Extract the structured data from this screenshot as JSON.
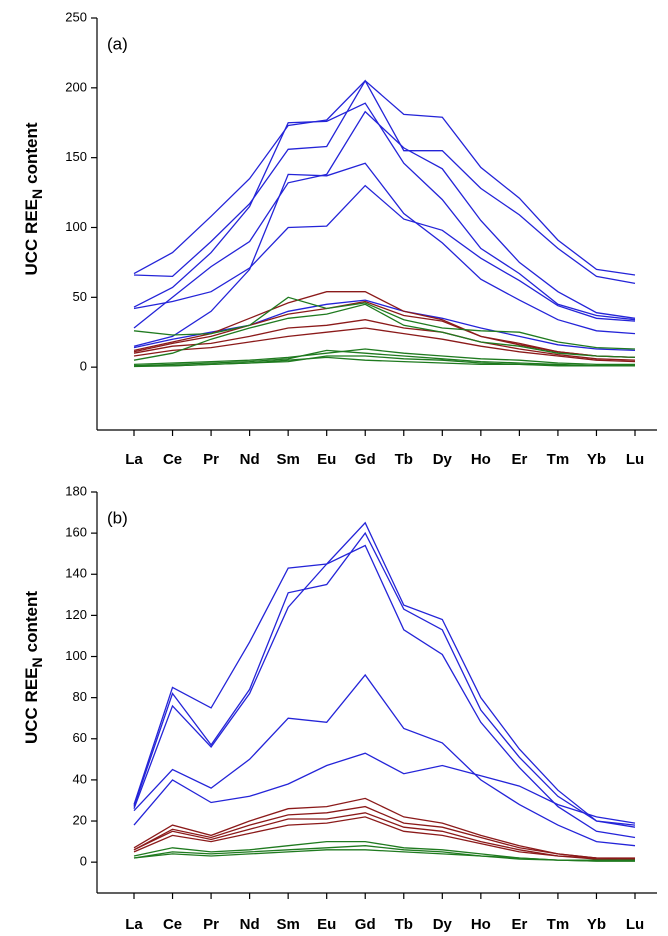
{
  "chart_data": [
    {
      "type": "line",
      "annotation": "(a)",
      "ylabel": "UCC REE",
      "ylabel_subscript": "N",
      "ylabel_suffix": "content",
      "categories": [
        "La",
        "Ce",
        "Pr",
        "Nd",
        "Sm",
        "Eu",
        "Gd",
        "Tb",
        "Dy",
        "Ho",
        "Er",
        "Tm",
        "Yb",
        "Lu"
      ],
      "ylim": [
        -45,
        250
      ],
      "yticks": [
        0,
        50,
        100,
        150,
        200,
        250
      ],
      "series": [
        {
          "color": "#2424d8",
          "values": [
            67,
            82,
            108,
            135,
            173,
            177,
            205,
            181,
            179,
            143,
            121,
            91,
            70,
            66
          ]
        },
        {
          "color": "#2424d8",
          "values": [
            66,
            65,
            90,
            117,
            156,
            158,
            205,
            155,
            155,
            128,
            109,
            85,
            65,
            60
          ]
        },
        {
          "color": "#2424d8",
          "values": [
            43,
            57,
            82,
            115,
            175,
            176,
            189,
            146,
            120,
            85,
            67,
            45,
            37,
            34
          ]
        },
        {
          "color": "#2424d8",
          "values": [
            42,
            47,
            54,
            71,
            100,
            101,
            130,
            106,
            98,
            78,
            62,
            44,
            35,
            33
          ]
        },
        {
          "color": "#2424d8",
          "values": [
            28,
            50,
            72,
            90,
            132,
            138,
            183,
            157,
            142,
            105,
            75,
            54,
            39,
            35
          ]
        },
        {
          "color": "#2424d8",
          "values": [
            15,
            22,
            40,
            70,
            138,
            137,
            146,
            110,
            89,
            63,
            48,
            34,
            26,
            24
          ]
        },
        {
          "color": "#2424d8",
          "values": [
            14,
            20,
            25,
            30,
            40,
            45,
            48,
            40,
            35,
            28,
            22,
            16,
            13,
            12
          ]
        },
        {
          "color": "#8b1a1a",
          "values": [
            12,
            18,
            24,
            35,
            46,
            54,
            54,
            40,
            34,
            22,
            17,
            11,
            8,
            7
          ]
        },
        {
          "color": "#8b1a1a",
          "values": [
            11,
            17,
            22,
            30,
            38,
            42,
            47,
            37,
            33,
            22,
            16,
            11,
            8,
            7
          ]
        },
        {
          "color": "#8b1a1a",
          "values": [
            10,
            15,
            17,
            22,
            28,
            30,
            34,
            28,
            25,
            18,
            13,
            9,
            6,
            5
          ]
        },
        {
          "color": "#8b1a1a",
          "values": [
            8,
            12,
            14,
            18,
            22,
            25,
            28,
            24,
            20,
            15,
            11,
            8,
            5,
            4
          ]
        },
        {
          "color": "#1f7a1f",
          "values": [
            26,
            23,
            24,
            30,
            50,
            42,
            46,
            34,
            28,
            26,
            25,
            18,
            14,
            13
          ]
        },
        {
          "color": "#1f7a1f",
          "values": [
            5,
            10,
            20,
            28,
            35,
            38,
            45,
            30,
            25,
            18,
            15,
            10,
            8,
            7
          ]
        },
        {
          "color": "#1f7a1f",
          "values": [
            2,
            3,
            4,
            5,
            7,
            10,
            13,
            10,
            8,
            6,
            5,
            3,
            2,
            2
          ]
        },
        {
          "color": "#1f7a1f",
          "values": [
            1,
            2,
            3,
            4,
            6,
            12,
            10,
            8,
            6,
            4,
            3,
            2,
            1,
            1
          ]
        },
        {
          "color": "#1f7a1f",
          "values": [
            0.5,
            1,
            2,
            3,
            4,
            8,
            8,
            6,
            5,
            3,
            2,
            1.5,
            1,
            1
          ]
        },
        {
          "color": "#1f7a1f",
          "values": [
            1,
            1,
            2,
            3,
            5,
            7,
            5,
            4,
            3,
            2,
            2,
            1,
            1,
            1
          ]
        }
      ]
    },
    {
      "type": "line",
      "annotation": "(b)",
      "ylabel": "UCC REE",
      "ylabel_subscript": "N",
      "ylabel_suffix": "content",
      "categories": [
        "La",
        "Ce",
        "Pr",
        "Nd",
        "Sm",
        "Eu",
        "Gd",
        "Tb",
        "Dy",
        "Ho",
        "Er",
        "Tm",
        "Yb",
        "Lu"
      ],
      "ylim": [
        -15,
        180
      ],
      "yticks": [
        0,
        20,
        40,
        60,
        80,
        100,
        120,
        140,
        160,
        180
      ],
      "series": [
        {
          "color": "#2424d8",
          "values": [
            28,
            85,
            75,
            107,
            143,
            145,
            165,
            125,
            118,
            80,
            55,
            35,
            20,
            18
          ]
        },
        {
          "color": "#2424d8",
          "values": [
            27,
            82,
            57,
            84,
            131,
            135,
            160,
            123,
            113,
            74,
            51,
            32,
            20,
            17
          ]
        },
        {
          "color": "#2424d8",
          "values": [
            26,
            76,
            56,
            82,
            124,
            145,
            154,
            113,
            101,
            68,
            46,
            27,
            15,
            12
          ]
        },
        {
          "color": "#2424d8",
          "values": [
            25,
            45,
            36,
            50,
            70,
            68,
            91,
            65,
            58,
            40,
            28,
            18,
            10,
            8
          ]
        },
        {
          "color": "#2424d8",
          "values": [
            18,
            40,
            29,
            32,
            38,
            47,
            53,
            43,
            47,
            42,
            37,
            28,
            22,
            19
          ]
        },
        {
          "color": "#8b1a1a",
          "values": [
            7,
            18,
            13,
            20,
            26,
            27,
            31,
            22,
            19,
            13,
            8,
            4,
            2,
            2
          ]
        },
        {
          "color": "#8b1a1a",
          "values": [
            6,
            16,
            12,
            18,
            23,
            24,
            27,
            19,
            17,
            12,
            7,
            4,
            2,
            1.5
          ]
        },
        {
          "color": "#8b1a1a",
          "values": [
            6,
            15,
            11,
            16,
            21,
            21,
            24,
            17,
            15,
            10,
            6,
            3,
            2,
            1.5
          ]
        },
        {
          "color": "#8b1a1a",
          "values": [
            5,
            13,
            10,
            14,
            18,
            19,
            22,
            15,
            13,
            9,
            5,
            3,
            1.5,
            1
          ]
        },
        {
          "color": "#1f7a1f",
          "values": [
            3,
            7,
            5,
            6,
            8,
            10,
            10,
            7,
            6,
            4,
            2,
            1,
            1,
            1
          ]
        },
        {
          "color": "#1f7a1f",
          "values": [
            2,
            5,
            4,
            5,
            6,
            7,
            8,
            6,
            5,
            3,
            2,
            1,
            0.5,
            0.5
          ]
        },
        {
          "color": "#1f7a1f",
          "values": [
            2,
            4,
            3,
            4,
            5,
            6,
            6,
            5,
            4,
            3,
            1.5,
            1,
            0.5,
            0.5
          ]
        }
      ]
    }
  ]
}
